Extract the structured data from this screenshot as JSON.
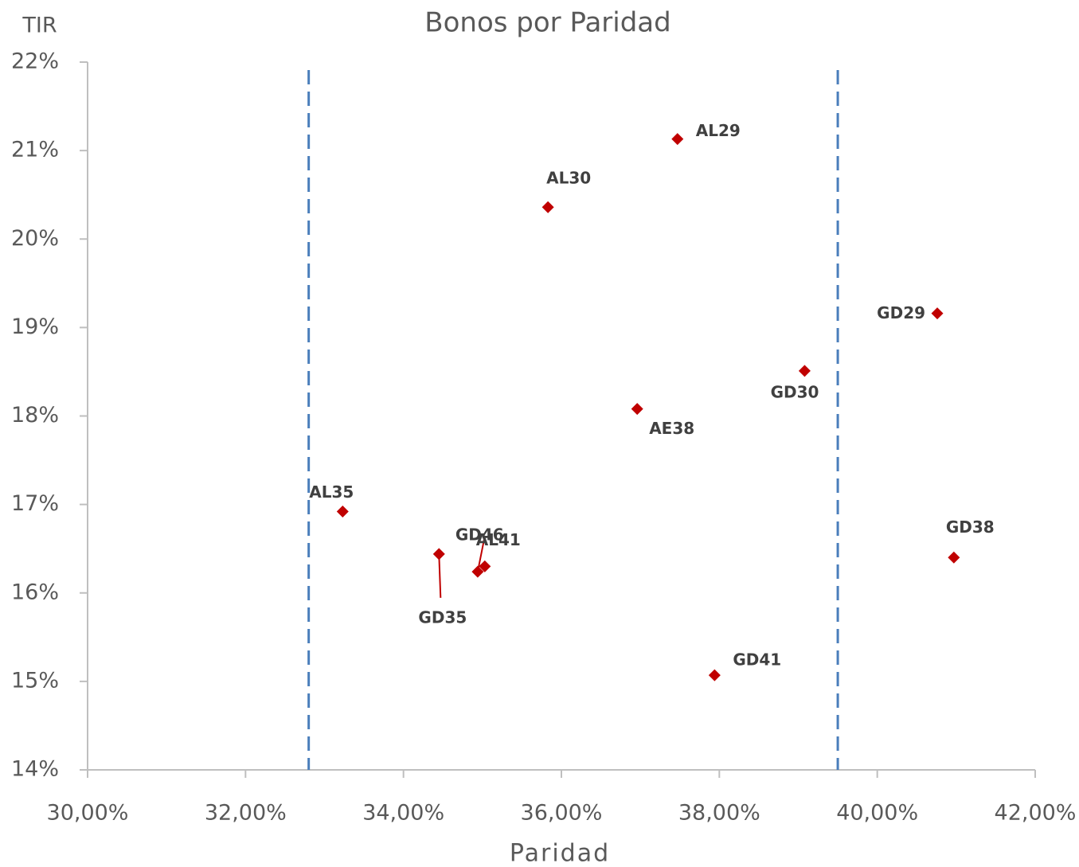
{
  "chart_data": {
    "type": "scatter",
    "title": "Bonos por Paridad",
    "x_label": "Paridad",
    "y_label": "TIR",
    "xlim": [
      30,
      42
    ],
    "ylim": [
      14,
      22
    ],
    "xticks": [
      {
        "value": 30,
        "label": "30,00%"
      },
      {
        "value": 32,
        "label": "32,00%"
      },
      {
        "value": 34,
        "label": "34,00%"
      },
      {
        "value": 36,
        "label": "36,00%"
      },
      {
        "value": 38,
        "label": "38,00%"
      },
      {
        "value": 40,
        "label": "40,00%"
      },
      {
        "value": 42,
        "label": "42,00%"
      }
    ],
    "yticks": [
      {
        "value": 14,
        "label": "14%"
      },
      {
        "value": 15,
        "label": "15%"
      },
      {
        "value": 16,
        "label": "16%"
      },
      {
        "value": 17,
        "label": "17%"
      },
      {
        "value": 18,
        "label": "18%"
      },
      {
        "value": 19,
        "label": "19%"
      },
      {
        "value": 20,
        "label": "20%"
      },
      {
        "value": 21,
        "label": "21%"
      },
      {
        "value": 22,
        "label": "22%"
      }
    ],
    "series": [
      {
        "color": "#c00000",
        "labels": [
          "AL29",
          "AL30",
          "GD29",
          "GD30",
          "AE38",
          "AL35",
          "GD35",
          "GD46",
          "AL41",
          "GD38",
          "GD41"
        ],
        "x": [
          37.47,
          35.83,
          40.76,
          39.08,
          36.96,
          33.23,
          34.45,
          34.94,
          35.03,
          40.97,
          37.94
        ],
        "values": [
          21.13,
          20.36,
          19.16,
          18.51,
          18.08,
          16.92,
          16.44,
          16.24,
          16.3,
          16.4,
          15.07
        ]
      }
    ],
    "reference_lines": {
      "color": "#4a7ebb",
      "x": [
        32.8,
        39.5
      ]
    }
  }
}
